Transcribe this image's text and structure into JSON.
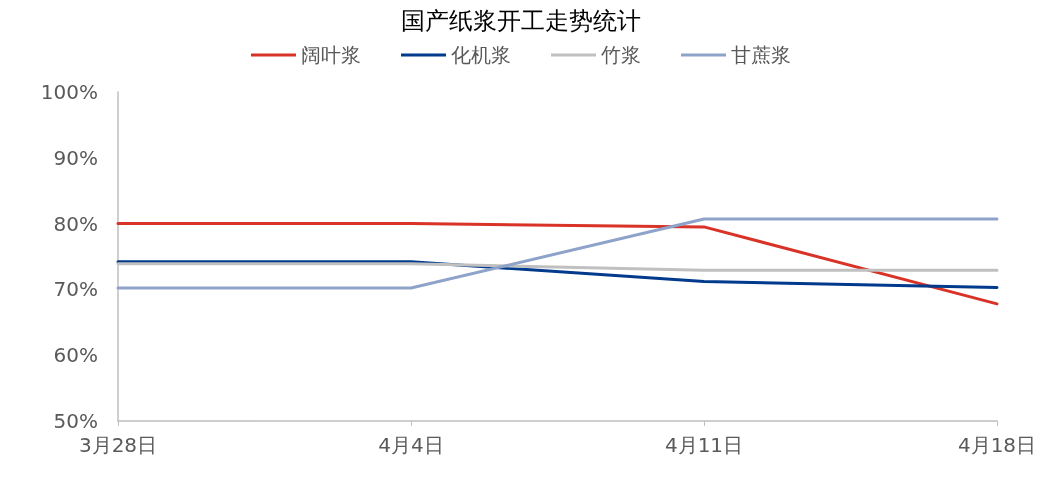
{
  "chart_data": {
    "type": "line",
    "title": "国产纸浆开工走势统计",
    "categories": [
      "3月28日",
      "4月4日",
      "4月11日",
      "4月18日"
    ],
    "series": [
      {
        "name": "阔叶浆",
        "color": "#d93328",
        "values": [
          80,
          80,
          79.5,
          67.8
        ]
      },
      {
        "name": "化机浆",
        "color": "#003a8c",
        "values": [
          74.2,
          74.2,
          71.2,
          70.3
        ]
      },
      {
        "name": "竹浆",
        "color": "#c0c0c0",
        "values": [
          73.9,
          73.9,
          72.9,
          72.9
        ]
      },
      {
        "name": "甘蔗浆",
        "color": "#8da3c9",
        "values": [
          70.2,
          70.2,
          80.7,
          80.7
        ]
      }
    ],
    "ylim": [
      50,
      100
    ],
    "yticks": [
      {
        "value": 50,
        "label": "50%"
      },
      {
        "value": 60,
        "label": "60%"
      },
      {
        "value": 70,
        "label": "70%"
      },
      {
        "value": 80,
        "label": "80%"
      },
      {
        "value": 90,
        "label": "90%"
      },
      {
        "value": 100,
        "label": "100%"
      }
    ],
    "grid": false,
    "legend": "top",
    "marker": "none",
    "line_style": "solid"
  }
}
